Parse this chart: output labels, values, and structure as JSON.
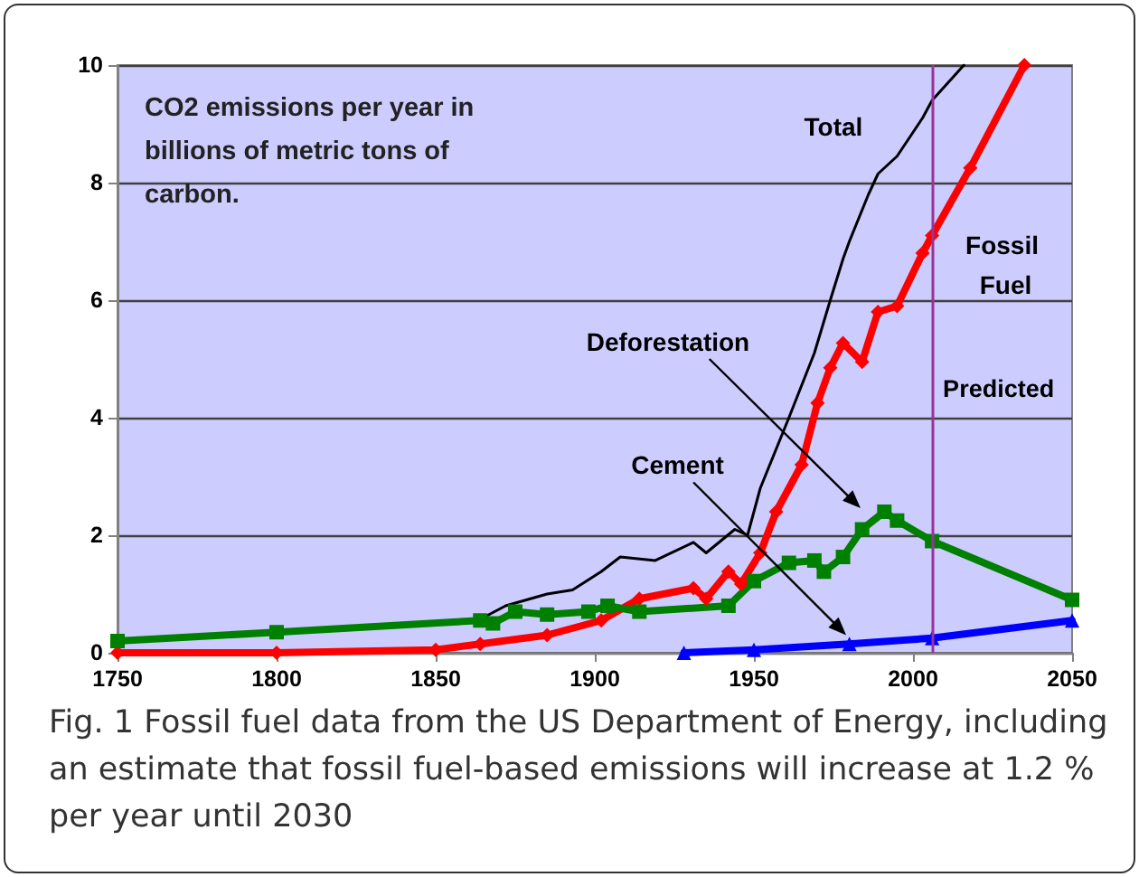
{
  "chart_data": {
    "type": "line",
    "title": "CO2 emissions per year in billions of metric tons of carbon.",
    "annotations": [
      "Fig. 1 Fossil fuel data from the US Department of Energy, including an estimate that fossil fuel-based emissions will increase at 1.2 % per year until 2030"
    ],
    "xlim": [
      1750,
      2050
    ],
    "xticks": [
      1750,
      1800,
      1850,
      1900,
      1950,
      2000,
      2050
    ],
    "ylim": [
      0,
      10
    ],
    "yticks": [
      0,
      2,
      4,
      6,
      8,
      10
    ],
    "grid": "y",
    "legend": false,
    "ref_lines": [
      {
        "axis": "x",
        "value": 2006,
        "label": "Predicted",
        "color": "#993399"
      }
    ],
    "series": [
      {
        "name": "Total",
        "color": "#000000",
        "marker": "none",
        "x": [
          1865,
          1872,
          1885,
          1893,
          1902,
          1908,
          1919,
          1931,
          1935,
          1944,
          1948,
          1952,
          1961,
          1969,
          1974,
          1978,
          1980,
          1986,
          1989,
          1995,
          2003,
          2006,
          2016
        ],
        "values": [
          0.6,
          0.8,
          1.0,
          1.07,
          1.38,
          1.63,
          1.57,
          1.88,
          1.7,
          2.1,
          2.0,
          2.8,
          4.0,
          5.1,
          6.0,
          6.7,
          7.0,
          7.8,
          8.15,
          8.45,
          9.1,
          9.4,
          10
        ]
      },
      {
        "name": "Fossil Fuel",
        "color": "#ff0000",
        "marker": "diamond",
        "x": [
          1750,
          1800,
          1850,
          1864,
          1885,
          1902,
          1914,
          1931,
          1935,
          1942,
          1946,
          1952,
          1957,
          1965,
          1970,
          1974,
          1978,
          1984,
          1989,
          1995,
          2003,
          2006,
          2018,
          2035
        ],
        "values": [
          0,
          0,
          0.05,
          0.15,
          0.3,
          0.55,
          0.92,
          1.1,
          0.92,
          1.38,
          1.17,
          1.7,
          2.4,
          3.2,
          4.25,
          4.85,
          5.27,
          4.95,
          5.8,
          5.9,
          6.8,
          7.1,
          8.25,
          10
        ]
      },
      {
        "name": "Deforestation",
        "color": "#008000",
        "marker": "square",
        "x": [
          1750,
          1800,
          1864,
          1868,
          1875,
          1885,
          1898,
          1904,
          1914,
          1942,
          1950,
          1961,
          1969,
          1972,
          1978,
          1984,
          1991,
          1995,
          2006,
          2050
        ],
        "values": [
          0.2,
          0.35,
          0.55,
          0.5,
          0.7,
          0.65,
          0.7,
          0.8,
          0.7,
          0.8,
          1.22,
          1.53,
          1.57,
          1.38,
          1.63,
          2.1,
          2.4,
          2.25,
          1.9,
          0.9
        ]
      },
      {
        "name": "Cement",
        "color": "#0000ff",
        "marker": "triangle",
        "x": [
          1928,
          1950,
          1980,
          2006,
          2050
        ],
        "values": [
          0,
          0.05,
          0.15,
          0.25,
          0.55
        ]
      }
    ]
  }
}
